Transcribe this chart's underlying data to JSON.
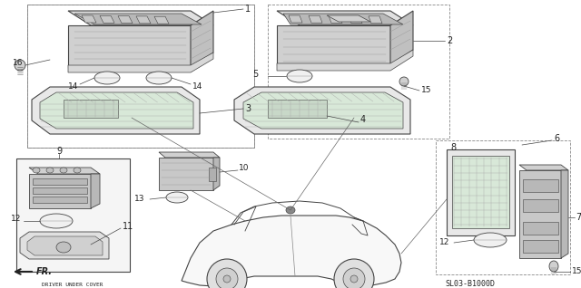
{
  "bg_color": "#ffffff",
  "fig_width": 6.4,
  "fig_height": 3.18,
  "dpi": 100,
  "diagram_code": "SL03-B1000D",
  "line_color": "#444444",
  "label_color": "#222222"
}
